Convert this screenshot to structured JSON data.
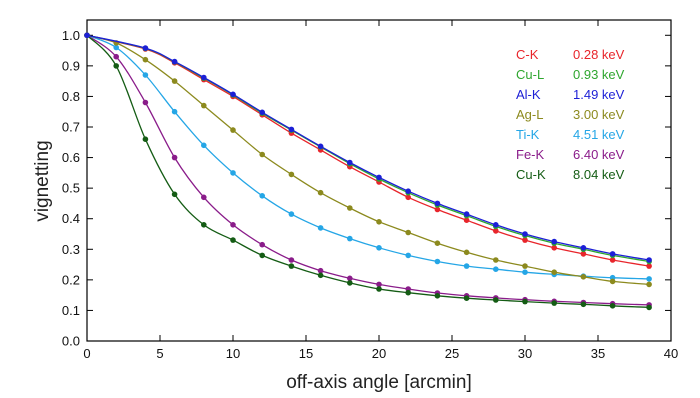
{
  "chart_data": {
    "type": "scatter",
    "title": "",
    "xlabel": "off-axis angle  [arcmin]",
    "ylabel": "vignetting",
    "xlim": [
      0,
      40
    ],
    "ylim": [
      0,
      1.05
    ],
    "xticks": [
      0,
      5,
      10,
      15,
      20,
      25,
      30,
      35,
      40
    ],
    "yticks": [
      0.0,
      0.1,
      0.2,
      0.3,
      0.4,
      0.5,
      0.6,
      0.7,
      0.8,
      0.9,
      1.0
    ],
    "grid": false,
    "legend_position": "top-right",
    "series": [
      {
        "name": "C-K",
        "energy": "0.28 keV",
        "color": "#e8252b",
        "x": [
          0,
          4,
          6,
          8,
          10,
          12,
          14,
          16,
          18,
          20,
          22,
          24,
          26,
          28,
          30,
          32,
          34,
          36,
          38.5
        ],
        "y": [
          1.0,
          0.955,
          0.91,
          0.855,
          0.8,
          0.74,
          0.68,
          0.625,
          0.57,
          0.52,
          0.47,
          0.43,
          0.395,
          0.36,
          0.33,
          0.305,
          0.285,
          0.265,
          0.245
        ]
      },
      {
        "name": "Cu-L",
        "energy": "0.93 keV",
        "color": "#2ea62e",
        "x": [
          0,
          4,
          6,
          8,
          10,
          12,
          14,
          16,
          18,
          20,
          22,
          24,
          26,
          28,
          30,
          32,
          34,
          36,
          38.5
        ],
        "y": [
          1.0,
          0.957,
          0.913,
          0.86,
          0.805,
          0.745,
          0.69,
          0.635,
          0.58,
          0.53,
          0.485,
          0.445,
          0.41,
          0.375,
          0.345,
          0.32,
          0.3,
          0.28,
          0.26
        ]
      },
      {
        "name": "Al-K",
        "energy": "1.49 keV",
        "color": "#1c1fd6",
        "x": [
          0,
          4,
          6,
          8,
          10,
          12,
          14,
          16,
          18,
          20,
          22,
          24,
          26,
          28,
          30,
          32,
          34,
          36,
          38.5
        ],
        "y": [
          1.0,
          0.958,
          0.914,
          0.862,
          0.807,
          0.748,
          0.692,
          0.637,
          0.584,
          0.535,
          0.49,
          0.45,
          0.415,
          0.38,
          0.35,
          0.325,
          0.305,
          0.285,
          0.265
        ]
      },
      {
        "name": "Ag-L",
        "energy": "3.00 keV",
        "color": "#8c8a1e",
        "x": [
          0,
          2,
          4,
          6,
          8,
          10,
          12,
          14,
          16,
          18,
          20,
          22,
          24,
          26,
          28,
          30,
          32,
          34,
          36,
          38.5
        ],
        "y": [
          1.0,
          0.975,
          0.92,
          0.85,
          0.77,
          0.69,
          0.61,
          0.545,
          0.485,
          0.435,
          0.39,
          0.355,
          0.32,
          0.29,
          0.265,
          0.245,
          0.225,
          0.21,
          0.195,
          0.185
        ]
      },
      {
        "name": "Ti-K",
        "energy": "4.51 keV",
        "color": "#25a6e6",
        "x": [
          0,
          2,
          4,
          6,
          8,
          10,
          12,
          14,
          16,
          18,
          20,
          22,
          24,
          26,
          28,
          30,
          32,
          34,
          36,
          38.5
        ],
        "y": [
          1.0,
          0.96,
          0.87,
          0.75,
          0.64,
          0.55,
          0.475,
          0.415,
          0.37,
          0.335,
          0.305,
          0.28,
          0.26,
          0.245,
          0.235,
          0.225,
          0.218,
          0.212,
          0.207,
          0.203
        ]
      },
      {
        "name": "Fe-K",
        "energy": "6.40 keV",
        "color": "#8a1c8a",
        "x": [
          0,
          2,
          4,
          6,
          8,
          10,
          12,
          14,
          16,
          18,
          20,
          22,
          24,
          26,
          28,
          30,
          32,
          34,
          36,
          38.5
        ],
        "y": [
          1.0,
          0.93,
          0.78,
          0.6,
          0.47,
          0.38,
          0.315,
          0.265,
          0.23,
          0.205,
          0.185,
          0.17,
          0.157,
          0.148,
          0.141,
          0.135,
          0.13,
          0.126,
          0.122,
          0.118
        ]
      },
      {
        "name": "Cu-K",
        "energy": "8.04 keV",
        "color": "#145c14",
        "x": [
          0,
          2,
          4,
          6,
          8,
          10,
          12,
          14,
          16,
          18,
          20,
          22,
          24,
          26,
          28,
          30,
          32,
          34,
          36,
          38.5
        ],
        "y": [
          1.0,
          0.9,
          0.66,
          0.48,
          0.38,
          0.33,
          0.28,
          0.245,
          0.215,
          0.19,
          0.17,
          0.158,
          0.148,
          0.14,
          0.134,
          0.129,
          0.124,
          0.12,
          0.115,
          0.11
        ]
      }
    ]
  }
}
